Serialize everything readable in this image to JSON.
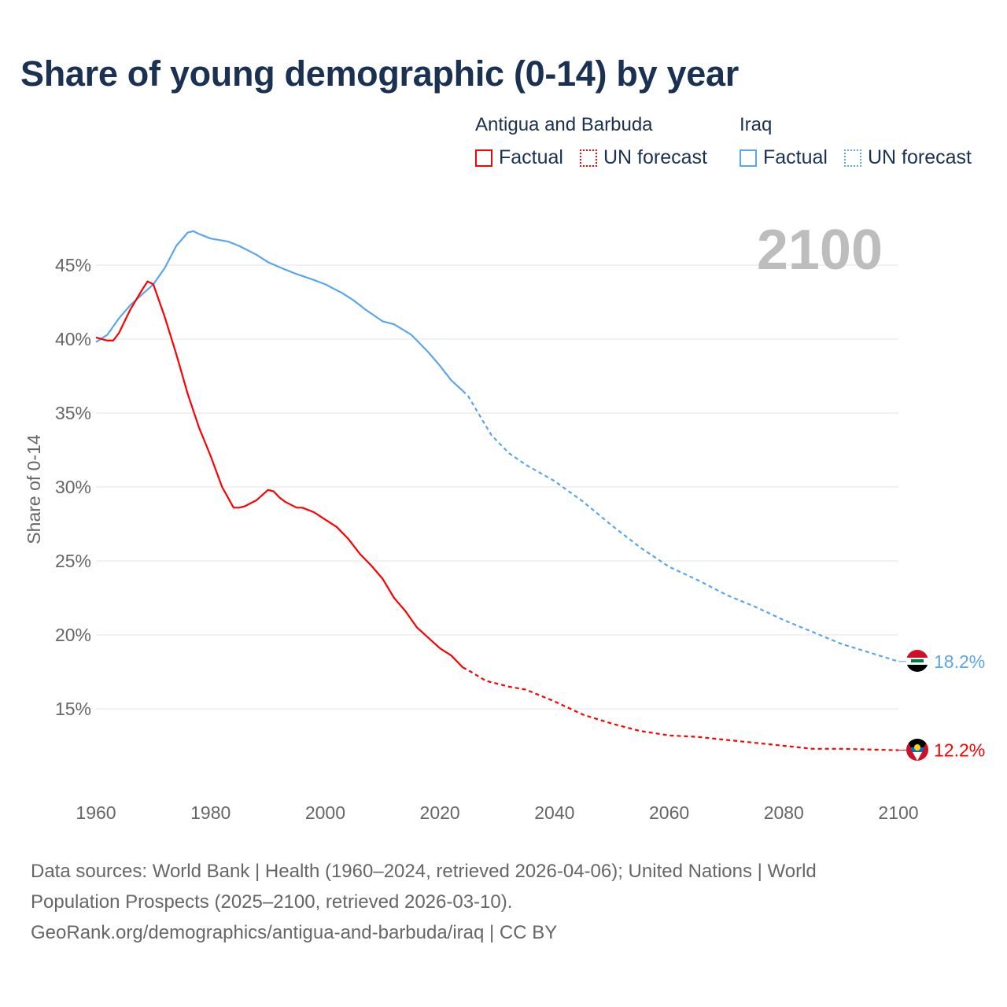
{
  "title": "Share of young demographic (0-14) by year",
  "legend": {
    "groups": [
      {
        "country": "Antigua and Barbuda",
        "factual": "Factual",
        "forecast": "UN forecast",
        "color": "#ff0000"
      },
      {
        "country": "Iraq",
        "factual": "Factual",
        "forecast": "UN forecast",
        "color": "#5aa6ec"
      }
    ]
  },
  "footer": {
    "line1": "Data sources: World Bank | Health (1960–2024, retrieved 2026-04-06); United Nations | World",
    "line2": "Population Prospects (2025–2100, retrieved 2026-03-10).",
    "line3": "GeoRank.org/demographics/antigua-and-barbuda/iraq | CC BY"
  },
  "chart_data": {
    "type": "line",
    "title": "Share of young demographic (0-14) by year",
    "xlabel": "",
    "ylabel": "Share of 0-14",
    "year_label": "2100",
    "xlim": [
      1960,
      2100
    ],
    "ylim": [
      10,
      48
    ],
    "x_ticks": [
      "1960",
      "1980",
      "2000",
      "2020",
      "2040",
      "2060",
      "2080",
      "2100"
    ],
    "y_ticks": [
      {
        "v": 15,
        "label": "15%"
      },
      {
        "v": 20,
        "label": "20%"
      },
      {
        "v": 25,
        "label": "25%"
      },
      {
        "v": 30,
        "label": "30%"
      },
      {
        "v": 35,
        "label": "35%"
      },
      {
        "v": 40,
        "label": "40%"
      },
      {
        "v": 45,
        "label": "45%"
      }
    ],
    "grid": true,
    "series": [
      {
        "name": "Iraq",
        "color": "#5aa6ec",
        "end_label": "18.2%",
        "factual": [
          [
            1960,
            39.8
          ],
          [
            1962,
            40.3
          ],
          [
            1964,
            41.4
          ],
          [
            1966,
            42.3
          ],
          [
            1968,
            43.0
          ],
          [
            1970,
            43.7
          ],
          [
            1972,
            44.8
          ],
          [
            1974,
            46.3
          ],
          [
            1976,
            47.2
          ],
          [
            1977,
            47.3
          ],
          [
            1978,
            47.1
          ],
          [
            1980,
            46.8
          ],
          [
            1983,
            46.6
          ],
          [
            1985,
            46.3
          ],
          [
            1988,
            45.7
          ],
          [
            1990,
            45.2
          ],
          [
            1993,
            44.7
          ],
          [
            1995,
            44.4
          ],
          [
            1998,
            44.0
          ],
          [
            2000,
            43.7
          ],
          [
            2003,
            43.1
          ],
          [
            2005,
            42.6
          ],
          [
            2007,
            42.0
          ],
          [
            2010,
            41.2
          ],
          [
            2012,
            41.0
          ],
          [
            2015,
            40.3
          ],
          [
            2018,
            39.1
          ],
          [
            2020,
            38.2
          ],
          [
            2022,
            37.2
          ],
          [
            2024,
            36.5
          ]
        ],
        "forecast": [
          [
            2024,
            36.5
          ],
          [
            2025,
            36.1
          ],
          [
            2027,
            34.8
          ],
          [
            2029,
            33.5
          ],
          [
            2032,
            32.3
          ],
          [
            2035,
            31.5
          ],
          [
            2040,
            30.4
          ],
          [
            2045,
            29.0
          ],
          [
            2050,
            27.4
          ],
          [
            2055,
            25.9
          ],
          [
            2060,
            24.6
          ],
          [
            2065,
            23.7
          ],
          [
            2070,
            22.7
          ],
          [
            2075,
            21.9
          ],
          [
            2080,
            21.0
          ],
          [
            2085,
            20.2
          ],
          [
            2090,
            19.4
          ],
          [
            2095,
            18.8
          ],
          [
            2100,
            18.2
          ]
        ]
      },
      {
        "name": "Antigua and Barbuda",
        "color": "#ff0000",
        "end_label": "12.2%",
        "factual": [
          [
            1960,
            40.1
          ],
          [
            1962,
            39.9
          ],
          [
            1963,
            39.9
          ],
          [
            1964,
            40.4
          ],
          [
            1966,
            42.0
          ],
          [
            1968,
            43.3
          ],
          [
            1969,
            43.9
          ],
          [
            1970,
            43.7
          ],
          [
            1972,
            41.5
          ],
          [
            1974,
            39.0
          ],
          [
            1976,
            36.3
          ],
          [
            1978,
            34.0
          ],
          [
            1980,
            32.1
          ],
          [
            1982,
            30.0
          ],
          [
            1984,
            28.6
          ],
          [
            1985,
            28.6
          ],
          [
            1986,
            28.7
          ],
          [
            1988,
            29.1
          ],
          [
            1990,
            29.8
          ],
          [
            1991,
            29.7
          ],
          [
            1992,
            29.3
          ],
          [
            1993,
            29.0
          ],
          [
            1995,
            28.6
          ],
          [
            1996,
            28.6
          ],
          [
            1998,
            28.3
          ],
          [
            2000,
            27.8
          ],
          [
            2002,
            27.3
          ],
          [
            2004,
            26.5
          ],
          [
            2006,
            25.5
          ],
          [
            2008,
            24.7
          ],
          [
            2010,
            23.8
          ],
          [
            2012,
            22.5
          ],
          [
            2014,
            21.6
          ],
          [
            2016,
            20.5
          ],
          [
            2018,
            19.8
          ],
          [
            2020,
            19.1
          ],
          [
            2022,
            18.6
          ],
          [
            2024,
            17.8
          ]
        ],
        "forecast": [
          [
            2024,
            17.8
          ],
          [
            2025,
            17.6
          ],
          [
            2028,
            16.9
          ],
          [
            2032,
            16.5
          ],
          [
            2035,
            16.3
          ],
          [
            2040,
            15.5
          ],
          [
            2045,
            14.6
          ],
          [
            2050,
            14.0
          ],
          [
            2055,
            13.5
          ],
          [
            2060,
            13.2
          ],
          [
            2065,
            13.1
          ],
          [
            2070,
            12.9
          ],
          [
            2075,
            12.7
          ],
          [
            2080,
            12.5
          ],
          [
            2085,
            12.3
          ],
          [
            2090,
            12.3
          ],
          [
            2100,
            12.2
          ]
        ]
      }
    ]
  }
}
